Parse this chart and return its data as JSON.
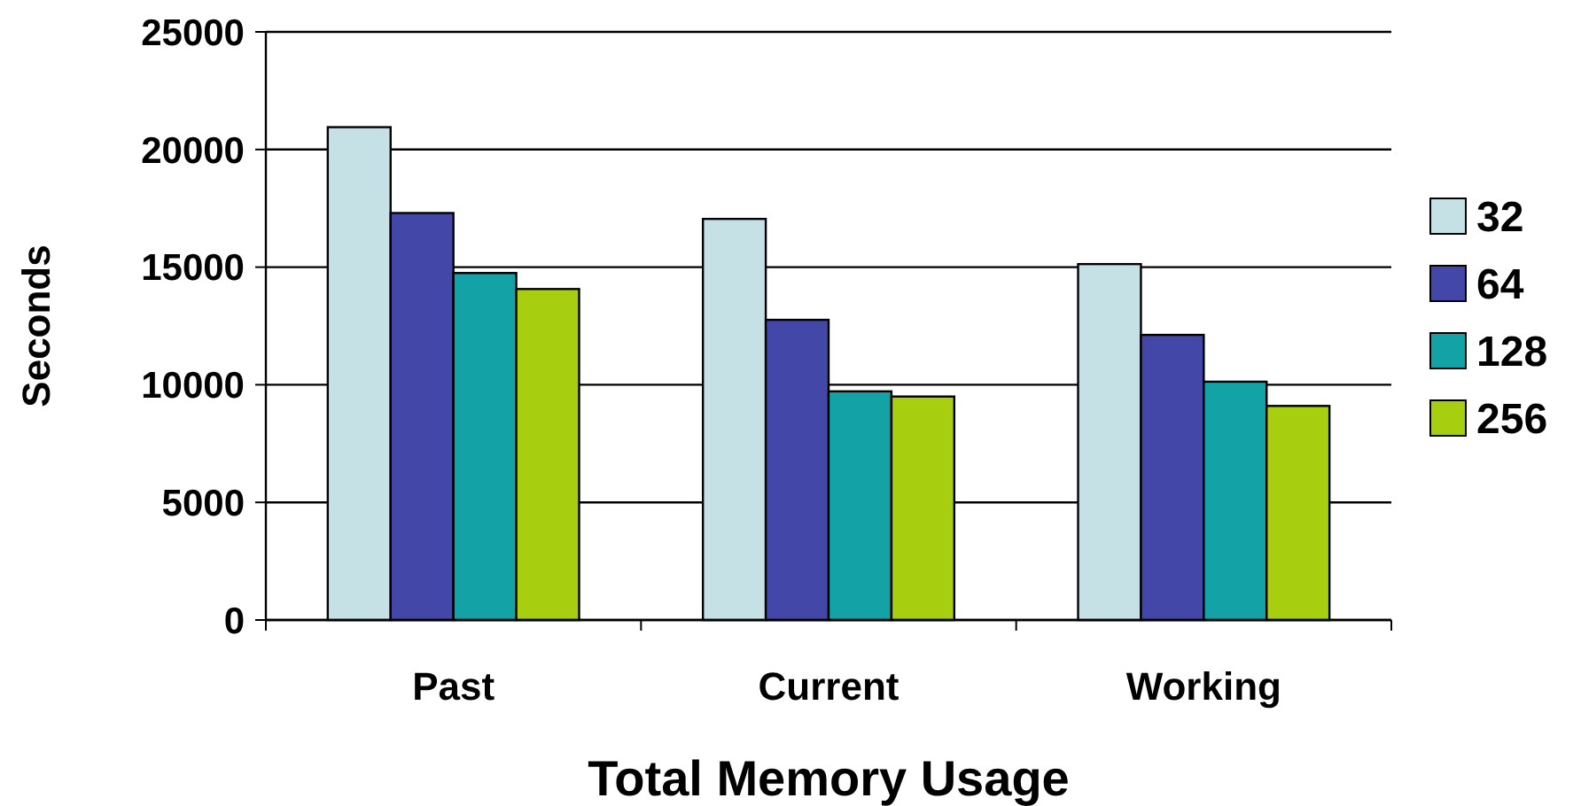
{
  "chart_data": {
    "type": "bar",
    "xlabel": "Total Memory Usage",
    "ylabel": "Seconds",
    "categories": [
      "Past",
      "Current",
      "Working"
    ],
    "series": [
      {
        "name": "32",
        "color": "#c5e1e6",
        "values": [
          20950,
          17050,
          15130
        ]
      },
      {
        "name": "64",
        "color": "#4347a7",
        "values": [
          17300,
          12760,
          12120
        ]
      },
      {
        "name": "128",
        "color": "#13a3a6",
        "values": [
          14750,
          9720,
          10130
        ]
      },
      {
        "name": "256",
        "color": "#a7ce0f",
        "values": [
          14070,
          9500,
          9100
        ]
      }
    ],
    "ylim": [
      0,
      25000
    ],
    "yticks": [
      0,
      5000,
      10000,
      15000,
      20000,
      25000
    ],
    "grid": "y",
    "legend": "right"
  }
}
